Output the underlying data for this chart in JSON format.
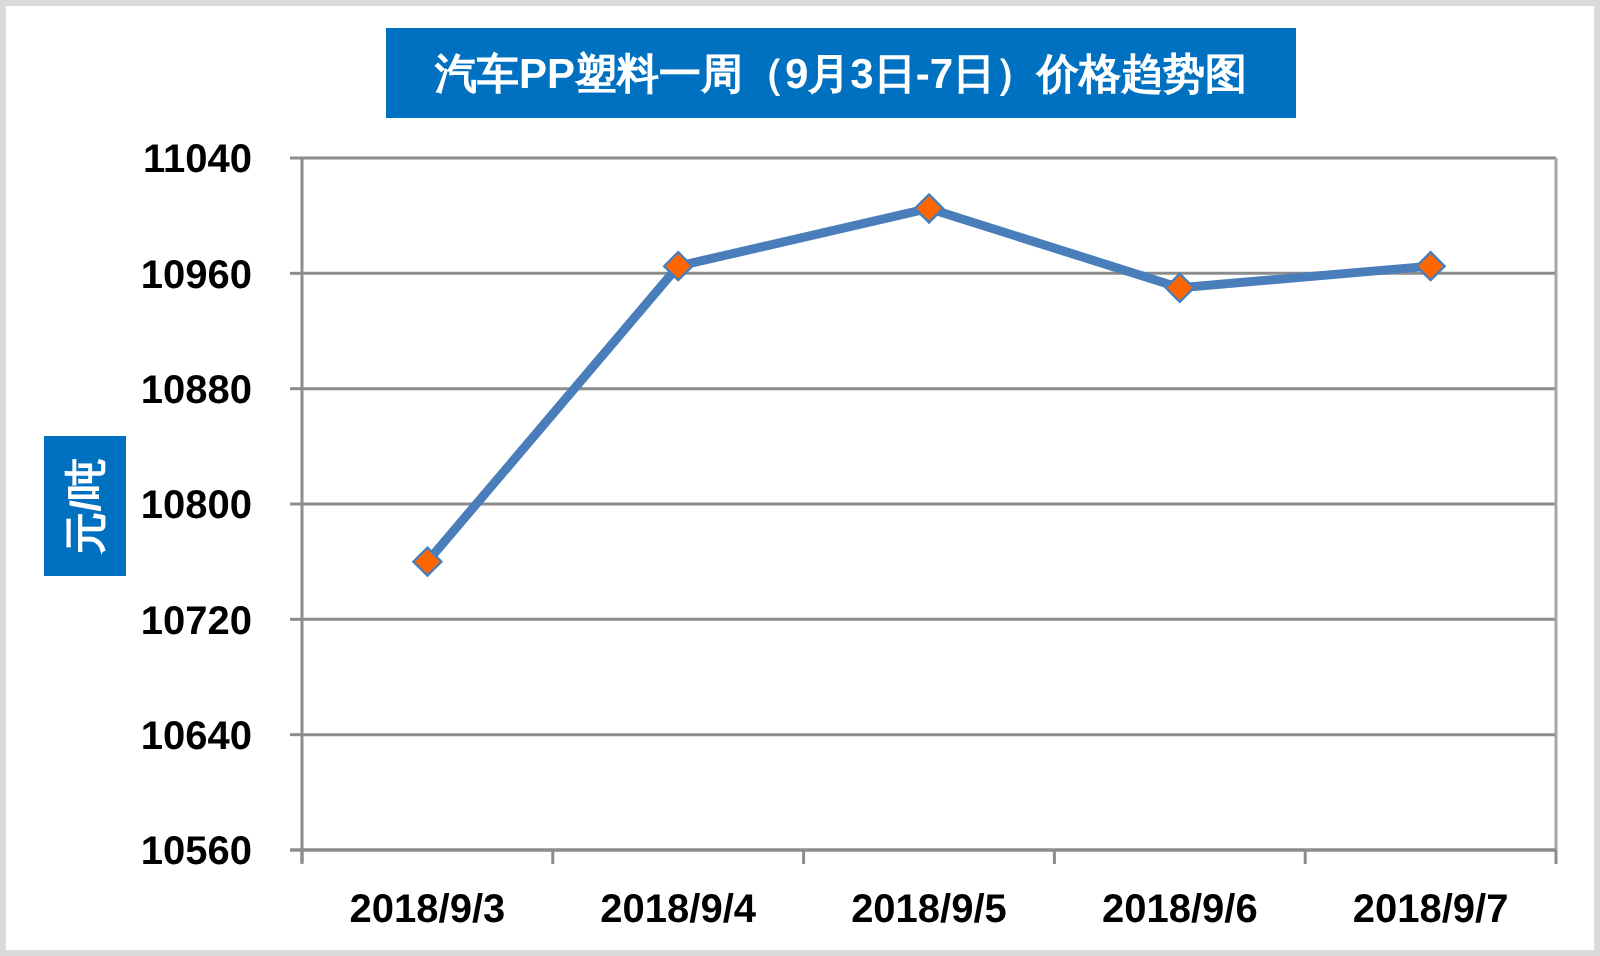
{
  "chart_data": {
    "type": "line",
    "title": "汽车PP塑料一周（9月3日-7日）价格趋势图",
    "ylabel": "元/吨",
    "categories": [
      "2018/9/3",
      "2018/9/4",
      "2018/9/5",
      "2018/9/6",
      "2018/9/7"
    ],
    "series": [
      {
        "color": "#4a7ebb",
        "colors": [
          "#ff6600",
          "#ff6600",
          "#ff6600",
          "#ff6600",
          "#ff6600"
        ],
        "values": [
          10760,
          10965,
          11005,
          10950,
          10965
        ]
      }
    ],
    "ylim": [
      10560,
      11040
    ],
    "yticks": [
      10560,
      10640,
      10720,
      10800,
      10880,
      10960,
      11040
    ],
    "grid": "y",
    "marker": "diamond",
    "line_style": "solid"
  }
}
